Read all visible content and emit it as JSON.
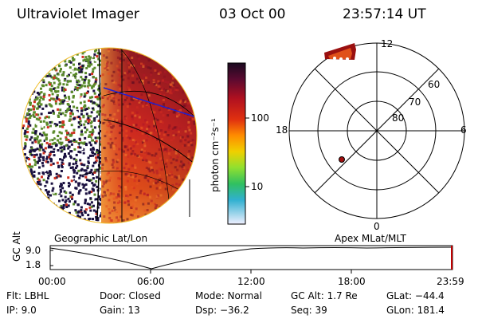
{
  "header": {
    "title": "Ultraviolet Imager",
    "date": "03 Oct 00",
    "time": "23:57:14 UT"
  },
  "colorbar": {
    "unit_label": "photon cm⁻²s⁻¹",
    "ticks": [
      "100",
      "10"
    ]
  },
  "left_panel": {
    "label": "Geographic Lat/Lon"
  },
  "polar_panel": {
    "label": "Apex MLat/MLT",
    "mlt_labels": {
      "top": "12",
      "left": "18",
      "right": "6",
      "bottom": "0"
    },
    "lat_labels": [
      "60",
      "70",
      "80"
    ]
  },
  "timeline": {
    "y_axis_label": "GC Alt",
    "y_ticks": [
      "9.0",
      "1.8"
    ],
    "x_ticks": [
      "00:00",
      "06:00",
      "12:00",
      "18:00",
      "23:59"
    ]
  },
  "info": {
    "flt": "Flt: LBHL",
    "ip": "IP:  9.0",
    "door": "Door: Closed",
    "gain": "Gain: 13",
    "mode": "Mode: Normal",
    "dsp": "Dsp:   −36.2",
    "gcalt": "GC Alt: 1.7 Re",
    "seq": "Seq: 39",
    "glat": "GLat: −44.4",
    "glon": "GLon: 181.4"
  },
  "colors": {
    "orbit_blue": "#2020d0",
    "dark_navy": "#1a1040",
    "speckle_green": "#5a8a2a",
    "speckle_red": "#d03020",
    "aurora_spot": "#a01010"
  }
}
